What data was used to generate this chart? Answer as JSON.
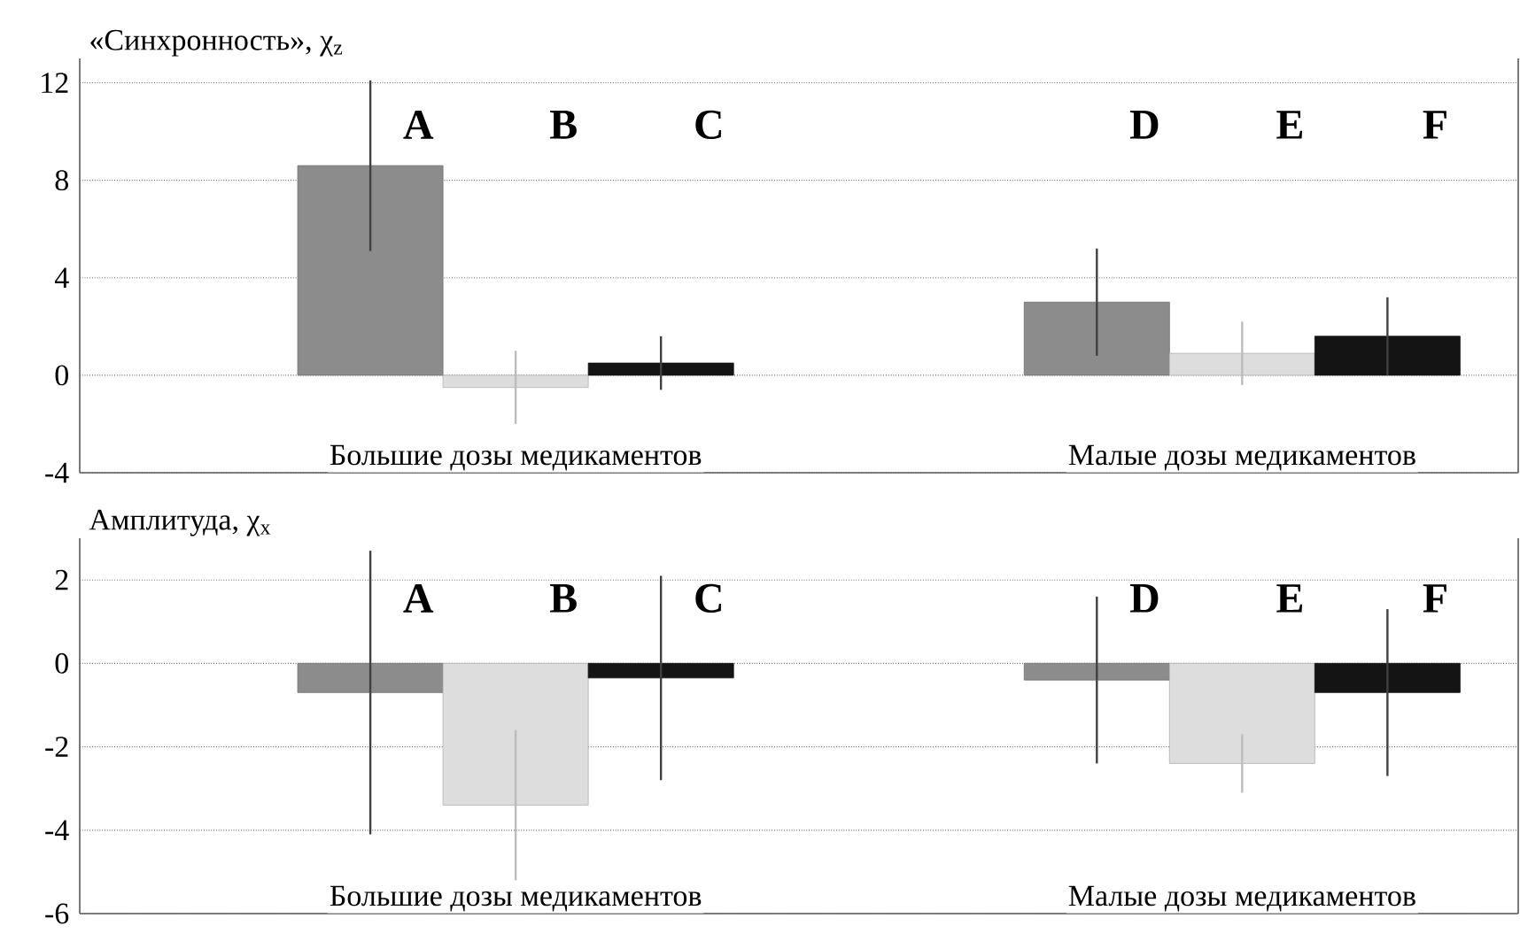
{
  "chart_data": [
    {
      "type": "bar",
      "ylabel": "«Синхронность», χ$_{z}$",
      "categories": [
        "A",
        "B",
        "C",
        "D",
        "E",
        "F"
      ],
      "values": [
        8.6,
        -0.5,
        0.5,
        3.0,
        0.9,
        1.6
      ],
      "errors": [
        3.5,
        1.5,
        1.1,
        2.2,
        1.3,
        1.6
      ],
      "colors": [
        "#8c8c8c",
        "#dddddd",
        "#141414",
        "#8c8c8c",
        "#dddddd",
        "#141414"
      ],
      "ylim": [
        -4,
        13
      ],
      "yticks": [
        -4,
        0,
        4,
        8,
        12
      ],
      "grid": "y",
      "tick_labels": "y",
      "annotations": [
        "Большие дозы медикаментов",
        "Малые дозы медикаментов"
      ]
    },
    {
      "type": "bar",
      "ylabel": "Амплитуда, χ$_{x}$",
      "categories": [
        "A",
        "B",
        "C",
        "D",
        "E",
        "F"
      ],
      "values": [
        -0.7,
        -3.4,
        -0.35,
        -0.4,
        -2.4,
        -0.7
      ],
      "errors": [
        3.4,
        1.8,
        2.45,
        2.0,
        0.7,
        2.0
      ],
      "colors": [
        "#8c8c8c",
        "#dddddd",
        "#141414",
        "#8c8c8c",
        "#dddddd",
        "#141414"
      ],
      "ylim": [
        -6,
        3
      ],
      "yticks": [
        -6,
        -4,
        -2,
        0,
        2
      ],
      "grid": "y",
      "tick_labels": "y",
      "annotations": [
        "Большие дозы медикаментов",
        "Малые дозы медикаментов"
      ]
    }
  ]
}
